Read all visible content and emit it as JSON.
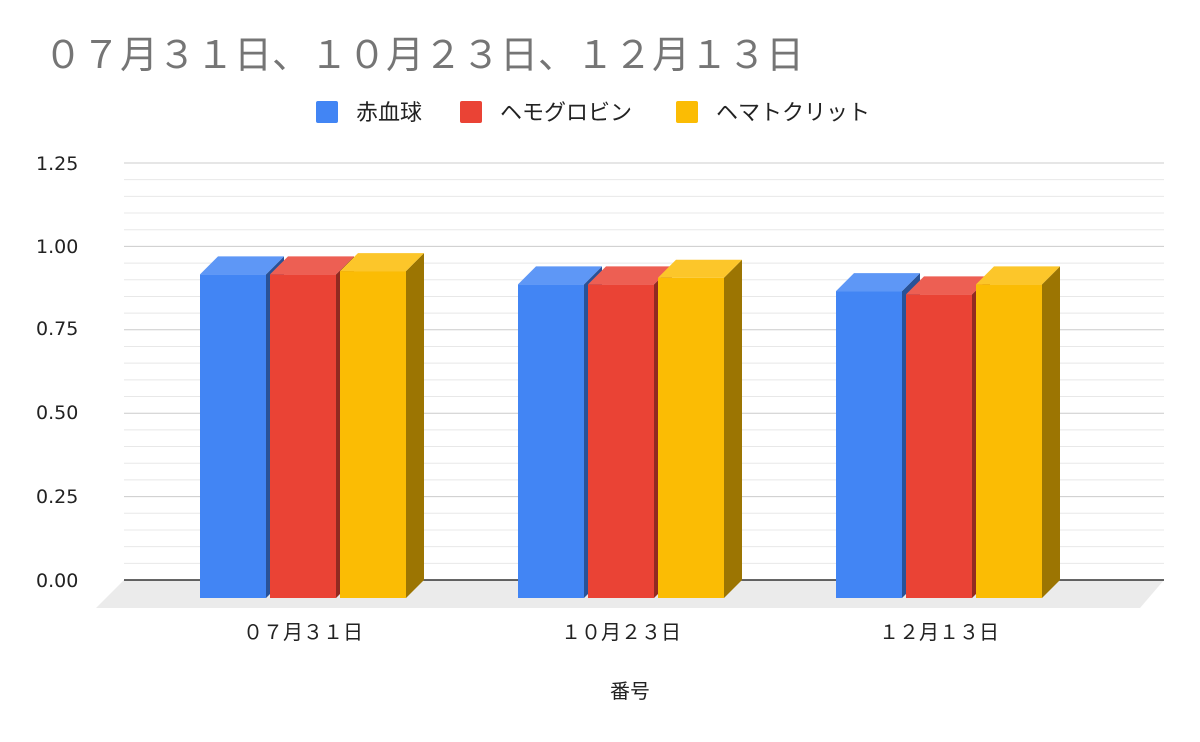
{
  "chart_data": {
    "type": "bar",
    "title": "０７月３１日、１０月２３日、１２月１３日",
    "xlabel": "番号",
    "ylabel": "",
    "categories": [
      "０７月３１日",
      "１０月２３日",
      "１２月１３日"
    ],
    "series": [
      {
        "name": "赤血球",
        "values": [
          0.97,
          0.94,
          0.92
        ],
        "color": "#4285f4"
      },
      {
        "name": "ヘモグロビン",
        "values": [
          0.97,
          0.94,
          0.91
        ],
        "color": "#ea4335"
      },
      {
        "name": "ヘマトクリット",
        "values": [
          0.98,
          0.96,
          0.94
        ],
        "color": "#fbbc04"
      }
    ],
    "ylim": [
      0,
      1.25
    ],
    "yticks": [
      "0.00",
      "0.25",
      "0.50",
      "0.75",
      "1.00",
      "1.25"
    ],
    "grid": true,
    "legend": "top-center",
    "style": "3d"
  }
}
